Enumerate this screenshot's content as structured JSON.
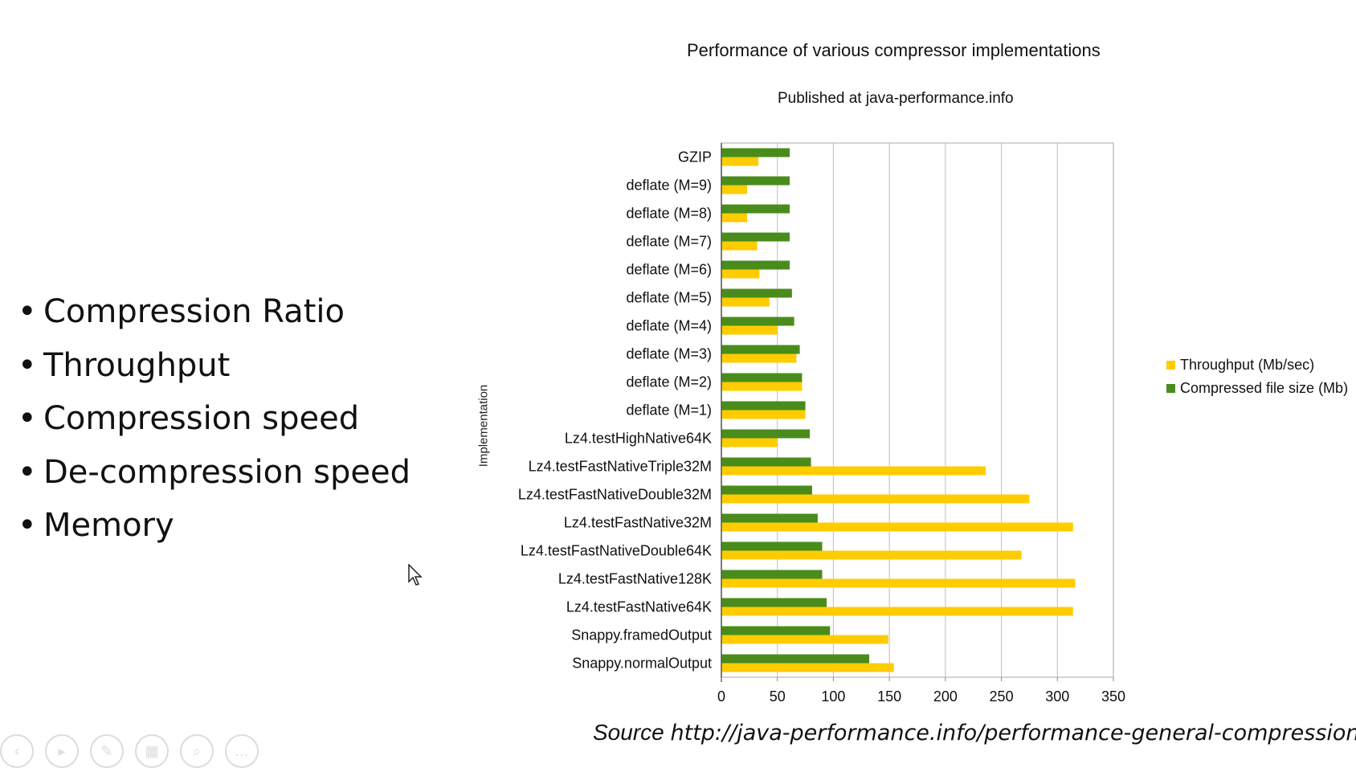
{
  "bullets": [
    "Compression Ratio",
    "Throughput",
    "Compression speed",
    "De-compression speed",
    "Memory"
  ],
  "source": {
    "label": "Source",
    "url": "http://java-performance.info/performance-general-compression/"
  },
  "colors": {
    "throughput": "#FFCC00",
    "size": "#4A8C1C",
    "grid": "#c8c8c8"
  },
  "icons": [
    "mouse-cursor-icon",
    "play-icon",
    "pen-icon",
    "slides-icon",
    "zoom-icon",
    "more-icon"
  ],
  "chart_data": {
    "type": "bar",
    "orientation": "horizontal",
    "title": "Performance of various compressor implementations",
    "subtitle": "Published at java-performance.info",
    "ylabel": "Implementation",
    "xlim": [
      0,
      350
    ],
    "xticks": [
      0,
      50,
      100,
      150,
      200,
      250,
      300,
      350
    ],
    "grid": true,
    "legend_position": "right",
    "categories": [
      "GZIP",
      "deflate (M=9)",
      "deflate (M=8)",
      "deflate (M=7)",
      "deflate (M=6)",
      "deflate (M=5)",
      "deflate (M=4)",
      "deflate (M=3)",
      "deflate (M=2)",
      "deflate (M=1)",
      "Lz4.testHighNative64K",
      "Lz4.testFastNativeTriple32M",
      "Lz4.testFastNativeDouble32M",
      "Lz4.testFastNative32M",
      "Lz4.testFastNativeDouble64K",
      "Lz4.testFastNative128K",
      "Lz4.testFastNative64K",
      "Snappy.framedOutput",
      "Snappy.normalOutput"
    ],
    "series": [
      {
        "name": "Compressed file size (Mb)",
        "values": [
          61,
          61,
          61,
          61,
          61,
          63,
          65,
          70,
          72,
          75,
          79,
          80,
          81,
          86,
          90,
          90,
          94,
          97,
          132
        ]
      },
      {
        "name": "Throughput (Mb/sec)",
        "values": [
          33,
          23,
          23,
          32,
          34,
          43,
          50,
          67,
          72,
          75,
          50,
          236,
          275,
          314,
          268,
          316,
          314,
          149,
          154
        ]
      }
    ]
  }
}
